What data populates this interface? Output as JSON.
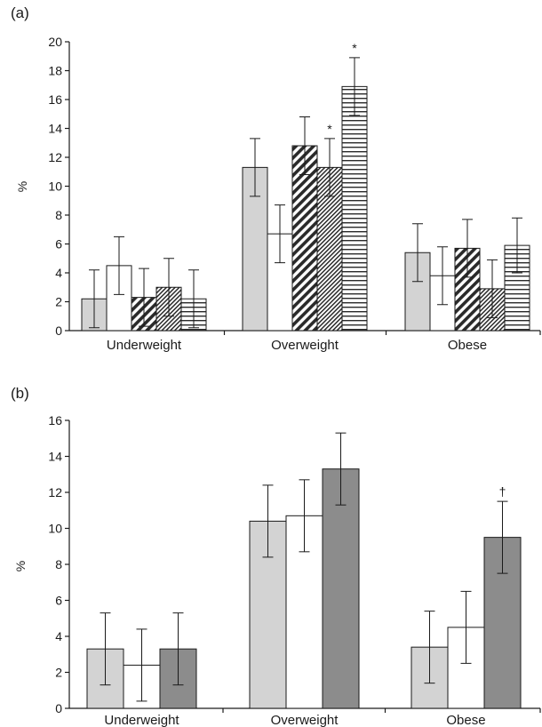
{
  "chart_data": [
    {
      "panel_label": "(a)",
      "type": "bar",
      "categories": [
        "Underweight",
        "Overweight",
        "Obese"
      ],
      "ylabel": "%",
      "ylim": [
        0,
        20
      ],
      "yticks": [
        0,
        2,
        4,
        6,
        8,
        10,
        12,
        14,
        16,
        18,
        20
      ],
      "grid": false,
      "legend": "none",
      "series": [
        {
          "fill": "light-grey",
          "values": [
            2.2,
            11.3,
            5.4
          ],
          "errors": [
            2.0,
            2.0,
            2.0
          ],
          "markers": [
            "",
            "",
            ""
          ]
        },
        {
          "fill": "white",
          "values": [
            4.5,
            6.7,
            3.8
          ],
          "errors": [
            2.0,
            2.0,
            2.0
          ],
          "markers": [
            "",
            "",
            ""
          ]
        },
        {
          "fill": "dense-diagonal-hatch",
          "values": [
            2.3,
            12.8,
            5.7
          ],
          "errors": [
            2.0,
            2.0,
            2.0
          ],
          "markers": [
            "",
            "",
            ""
          ]
        },
        {
          "fill": "fine-diagonal-hatch",
          "values": [
            3.0,
            11.3,
            2.9
          ],
          "errors": [
            2.0,
            2.0,
            2.0
          ],
          "markers": [
            "",
            "*",
            ""
          ]
        },
        {
          "fill": "horizontal-stripes",
          "values": [
            2.2,
            16.9,
            5.9
          ],
          "errors": [
            2.0,
            2.0,
            1.9
          ],
          "markers": [
            "",
            "*",
            ""
          ]
        }
      ]
    },
    {
      "panel_label": "(b)",
      "type": "bar",
      "categories": [
        "Underweight",
        "Overweight",
        "Obese"
      ],
      "ylabel": "%",
      "ylim": [
        0,
        16
      ],
      "yticks": [
        0,
        2,
        4,
        6,
        8,
        10,
        12,
        14,
        16
      ],
      "grid": false,
      "legend": "none",
      "series": [
        {
          "fill": "light-grey",
          "values": [
            3.3,
            10.4,
            3.4
          ],
          "errors": [
            2.0,
            2.0,
            2.0
          ],
          "markers": [
            "",
            "",
            ""
          ]
        },
        {
          "fill": "white",
          "values": [
            2.4,
            10.7,
            4.5
          ],
          "errors": [
            2.0,
            2.0,
            2.0
          ],
          "markers": [
            "",
            "",
            ""
          ]
        },
        {
          "fill": "dark-grey",
          "values": [
            3.3,
            13.3,
            9.5
          ],
          "errors": [
            2.0,
            2.0,
            2.0
          ],
          "markers": [
            "",
            "",
            "†"
          ]
        }
      ]
    }
  ],
  "colors": {
    "light-grey": "#d3d3d3",
    "white": "#ffffff",
    "dark-grey": "#8c8c8c",
    "stroke": "#1a1a1a"
  }
}
